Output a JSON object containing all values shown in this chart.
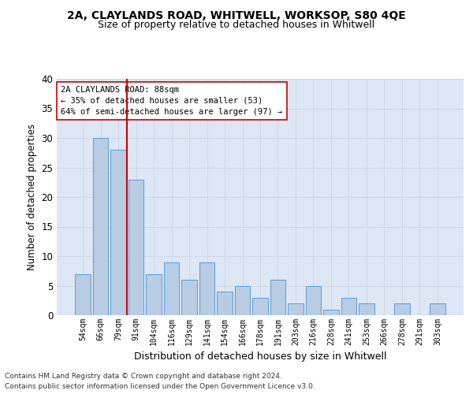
{
  "title1": "2A, CLAYLANDS ROAD, WHITWELL, WORKSOP, S80 4QE",
  "title2": "Size of property relative to detached houses in Whitwell",
  "xlabel": "Distribution of detached houses by size in Whitwell",
  "ylabel": "Number of detached properties",
  "categories": [
    "54sqm",
    "66sqm",
    "79sqm",
    "91sqm",
    "104sqm",
    "116sqm",
    "129sqm",
    "141sqm",
    "154sqm",
    "166sqm",
    "178sqm",
    "191sqm",
    "203sqm",
    "216sqm",
    "228sqm",
    "241sqm",
    "253sqm",
    "266sqm",
    "278sqm",
    "291sqm",
    "303sqm"
  ],
  "values": [
    7,
    30,
    28,
    23,
    7,
    9,
    6,
    9,
    4,
    5,
    3,
    6,
    2,
    5,
    1,
    3,
    2,
    0,
    2,
    0,
    2
  ],
  "bar_color": "#b8cce4",
  "bar_edge_color": "#5b9bd5",
  "grid_color": "#d0d8e8",
  "background_color": "#dce6f5",
  "vline_x": 2.5,
  "vline_color": "#cc0000",
  "annotation_line1": "2A CLAYLANDS ROAD: 88sqm",
  "annotation_line2": "← 35% of detached houses are smaller (53)",
  "annotation_line3": "64% of semi-detached houses are larger (97) →",
  "annotation_box_color": "#ffffff",
  "annotation_box_edge": "#cc0000",
  "ylim": [
    0,
    40
  ],
  "yticks": [
    0,
    5,
    10,
    15,
    20,
    25,
    30,
    35,
    40
  ],
  "title1_fontsize": 10,
  "title2_fontsize": 9,
  "ylabel_fontsize": 8.5,
  "xlabel_fontsize": 9,
  "footer1": "Contains HM Land Registry data © Crown copyright and database right 2024.",
  "footer2": "Contains public sector information licensed under the Open Government Licence v3.0."
}
